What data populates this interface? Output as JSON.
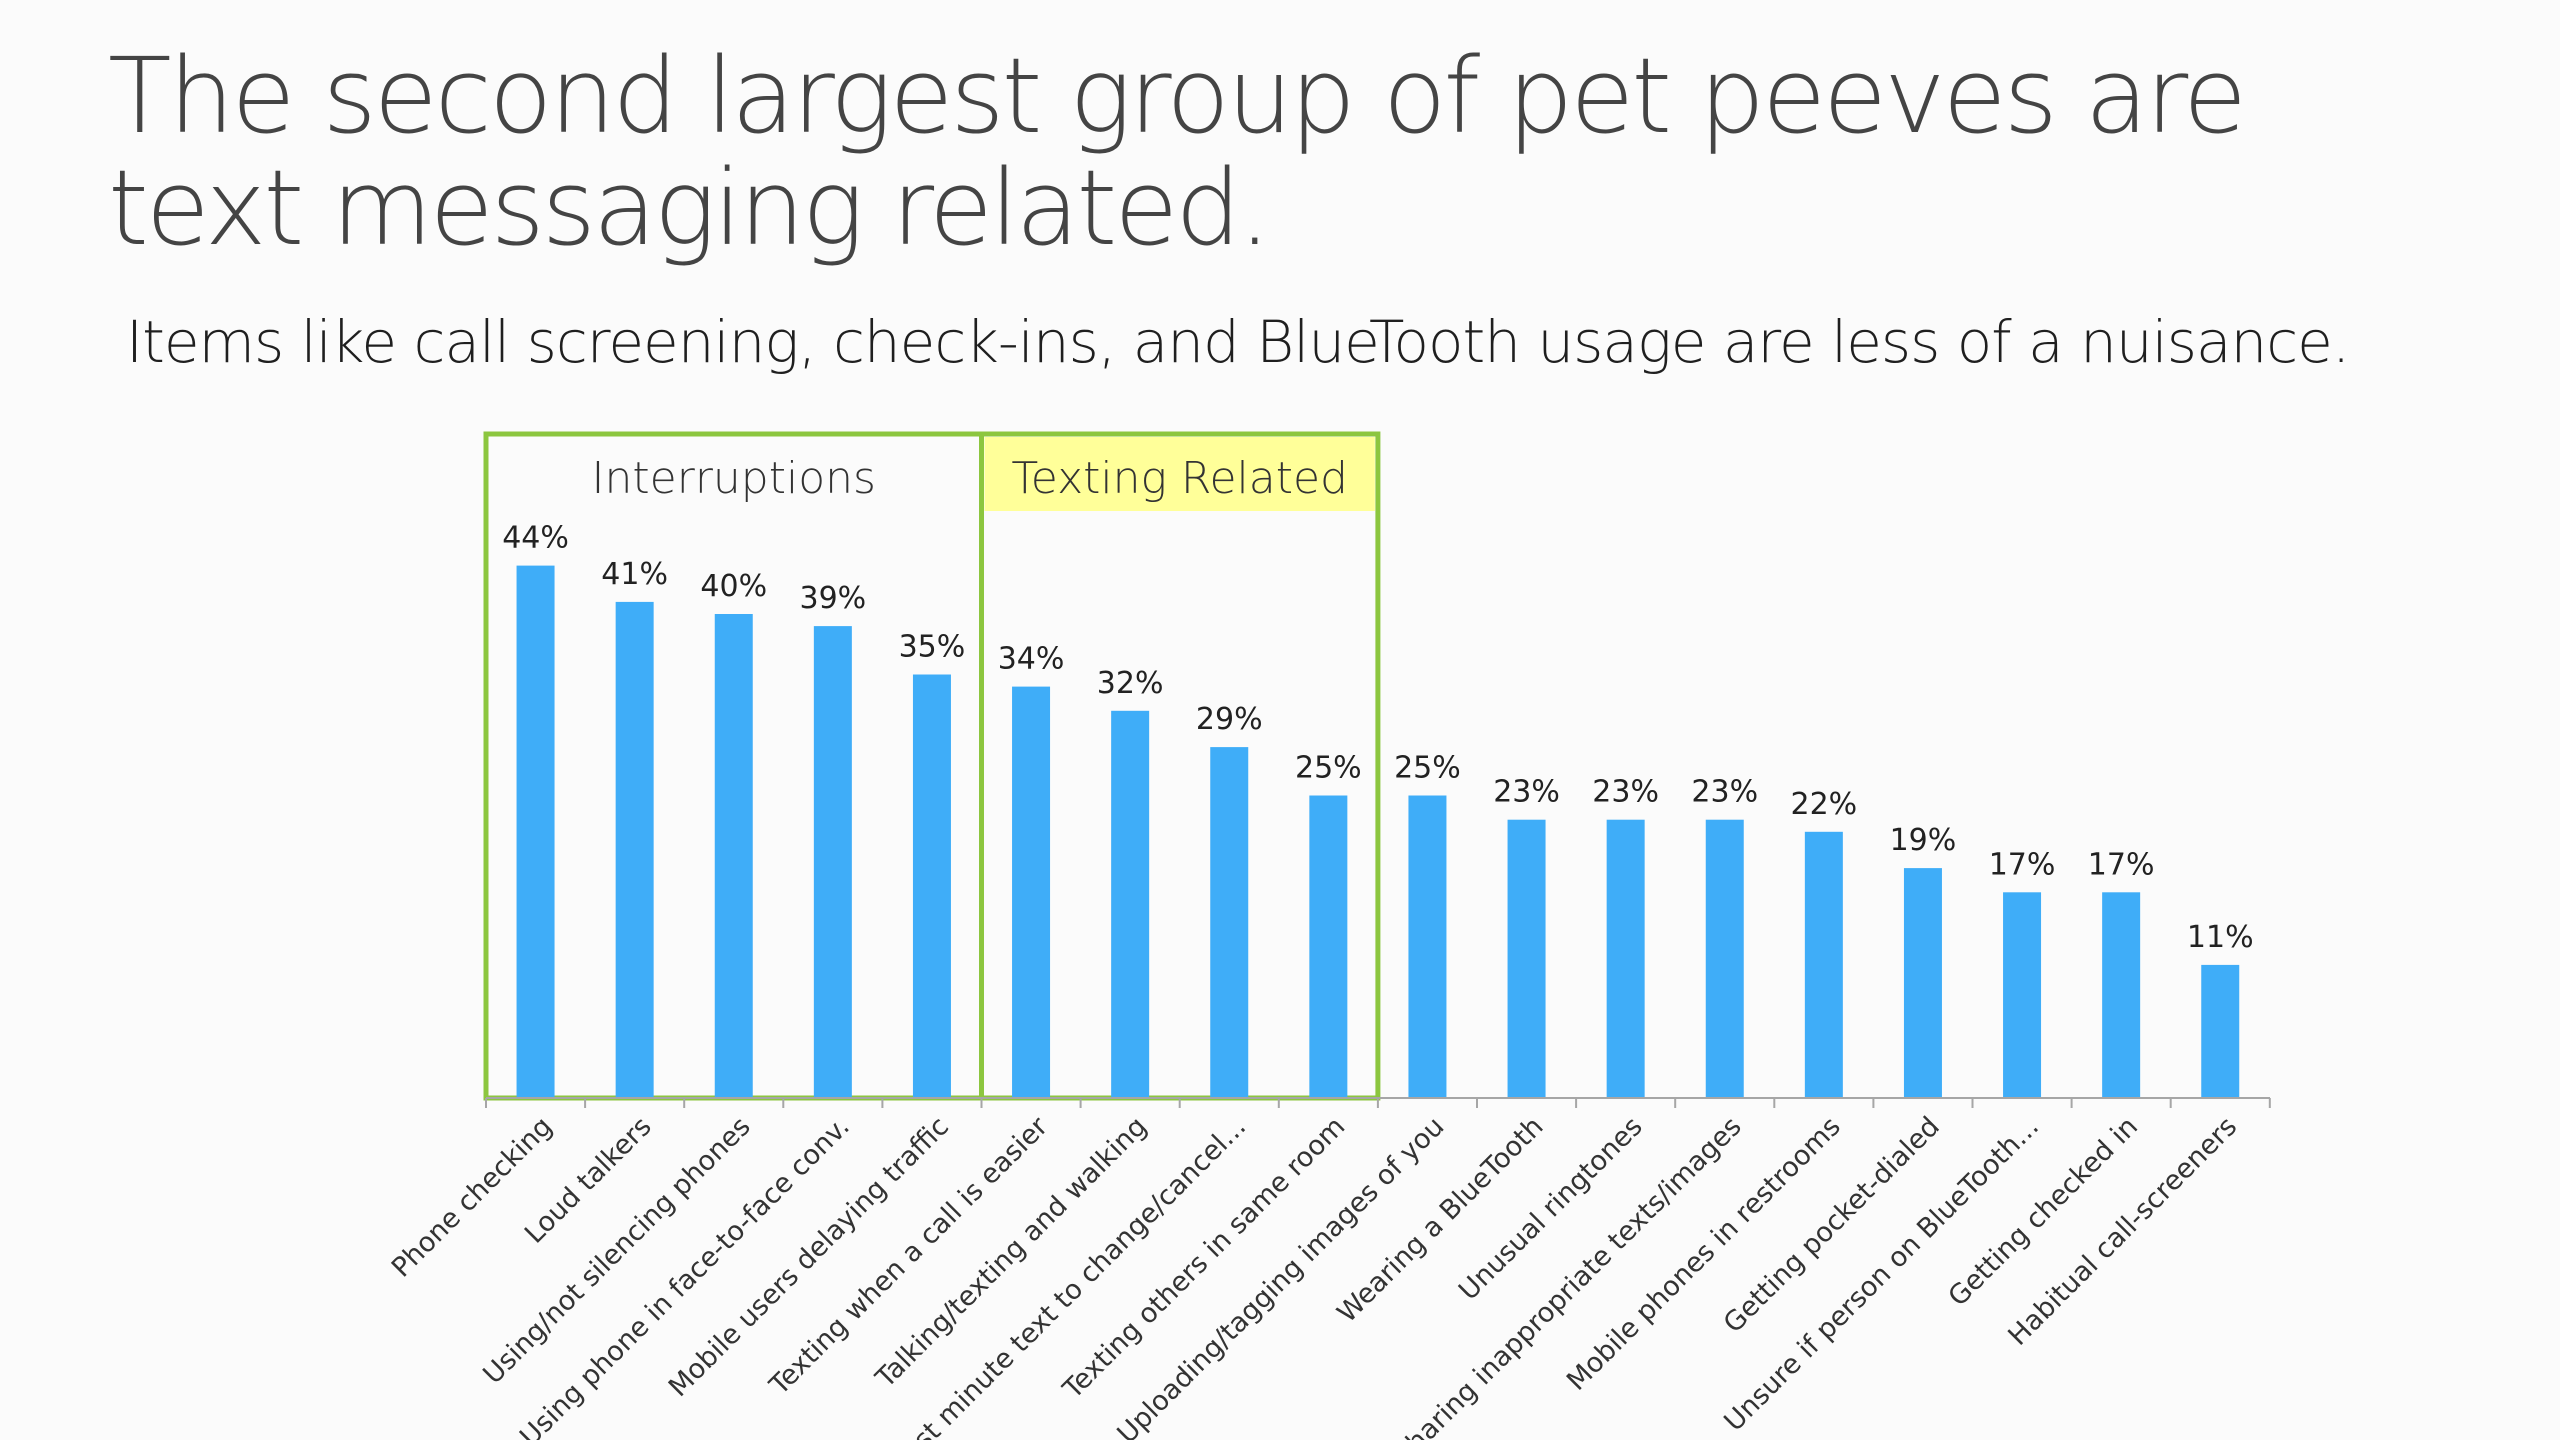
{
  "title": "The second largest group of pet peeves are text messaging related.",
  "subtitle": "Items like call screening, check-ins, and BlueTooth usage are less of a nuisance.",
  "chart_data": {
    "type": "bar",
    "categories": [
      "Phone checking",
      "Loud talkers",
      "Using/not silencing phones",
      "Using phone in face-to-face conv.",
      "Mobile users delaying traffic",
      "Texting when a call is easier",
      "Talking/texting and walking",
      "Last minute text to change/cancel...",
      "Texting others in same room",
      "Uploading/tagging images of you",
      "Wearing a BlueTooth",
      "Unusual ringtones",
      "Sharing inappropriate texts/images",
      "Mobile phones in restrooms",
      "Getting pocket-dialed",
      "Unsure if person on BlueTooth...",
      "Getting checked in",
      "Habitual call-screeners"
    ],
    "values": [
      44,
      41,
      40,
      39,
      35,
      34,
      32,
      29,
      25,
      25,
      23,
      23,
      23,
      22,
      19,
      17,
      17,
      11
    ],
    "value_labels": [
      "44%",
      "41%",
      "40%",
      "39%",
      "35%",
      "34%",
      "32%",
      "29%",
      "25%",
      "25%",
      "23%",
      "23%",
      "23%",
      "22%",
      "19%",
      "17%",
      "17%",
      "11%"
    ],
    "ylim": [
      0,
      50
    ],
    "grid": false,
    "bar_color": "#3fadf8",
    "groups": [
      {
        "label": "Interruptions",
        "start_index": 0,
        "end_index": 4,
        "highlight": ""
      },
      {
        "label": "Texting Related",
        "start_index": 5,
        "end_index": 8,
        "highlight": "#ffff99"
      }
    ],
    "group_border_color": "#8cc63f"
  }
}
